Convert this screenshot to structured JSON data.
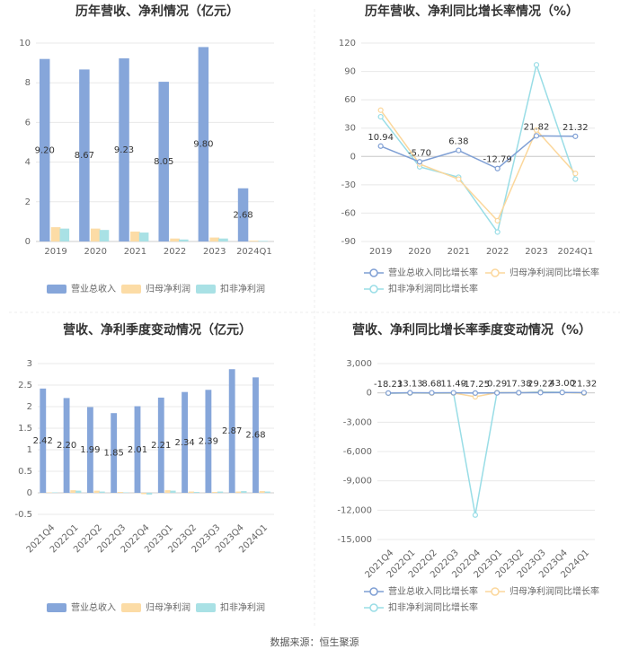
{
  "chart_data": [
    {
      "type": "bar",
      "title": "历年营收、净利情况（亿元）",
      "categories": [
        "2019",
        "2020",
        "2021",
        "2022",
        "2023",
        "2024Q1"
      ],
      "series": [
        {
          "name": "营业总收入",
          "color": "#86a6da",
          "values": [
            9.2,
            8.67,
            9.23,
            8.05,
            9.8,
            2.68
          ],
          "value_labels": [
            "9.20",
            "8.67",
            "9.23",
            "8.05",
            "9.80",
            "2.68"
          ]
        },
        {
          "name": "归母净利润",
          "color": "#fcdca6",
          "values": [
            0.72,
            0.65,
            0.5,
            0.15,
            0.2,
            0.04
          ]
        },
        {
          "name": "扣非净利润",
          "color": "#a9e1e5",
          "values": [
            0.65,
            0.58,
            0.45,
            0.1,
            0.15,
            0.03
          ]
        }
      ],
      "ylim": [
        0,
        10
      ],
      "yticks": [
        0,
        2,
        4,
        6,
        8,
        10
      ],
      "grid": true
    },
    {
      "type": "line",
      "title": "历年营收、净利同比增长率情况（%）",
      "categories": [
        "2019",
        "2020",
        "2021",
        "2022",
        "2023",
        "2024Q1"
      ],
      "series": [
        {
          "name": "营业总收入同比增长率",
          "color": "#7f9fd4",
          "values": [
            10.94,
            -5.7,
            6.38,
            -12.79,
            21.82,
            21.32
          ],
          "value_labels": [
            "10.94",
            "-5.70",
            "6.38",
            "-12.79",
            "21.82",
            "21.32"
          ]
        },
        {
          "name": "归母净利润同比增长率",
          "color": "#fbd79c",
          "values": [
            49,
            -8,
            -24,
            -68,
            28,
            -18
          ]
        },
        {
          "name": "扣非净利润同比增长率",
          "color": "#99dde6",
          "values": [
            42,
            -11,
            -22,
            -80,
            97,
            -24
          ]
        }
      ],
      "ylim": [
        -90,
        120
      ],
      "yticks": [
        -90,
        -60,
        -30,
        0,
        30,
        60,
        90,
        120
      ],
      "grid": true
    },
    {
      "type": "bar",
      "title": "营收、净利季度变动情况（亿元）",
      "categories": [
        "2021Q4",
        "2022Q1",
        "2022Q2",
        "2022Q3",
        "2022Q4",
        "2023Q1",
        "2023Q2",
        "2023Q3",
        "2023Q4",
        "2024Q1"
      ],
      "series": [
        {
          "name": "营业总收入",
          "color": "#86a6da",
          "values": [
            2.42,
            2.2,
            1.99,
            1.85,
            2.01,
            2.21,
            2.34,
            2.39,
            2.87,
            2.68
          ],
          "value_labels": [
            "2.42",
            "2.20",
            "1.99",
            "1.85",
            "2.01",
            "2.21",
            "2.34",
            "2.39",
            "2.87",
            "2.68"
          ]
        },
        {
          "name": "归母净利润",
          "color": "#fcdca6",
          "values": [
            0.01,
            0.06,
            0.05,
            0.02,
            -0.03,
            0.06,
            0.03,
            0.02,
            0.03,
            0.04
          ]
        },
        {
          "name": "扣非净利润",
          "color": "#a9e1e5",
          "values": [
            0.01,
            0.05,
            0.03,
            0.01,
            -0.04,
            0.05,
            0.02,
            0.03,
            0.04,
            0.03
          ]
        }
      ],
      "ylim": [
        -0.5,
        3
      ],
      "yticks": [
        -0.5,
        0,
        0.5,
        1,
        1.5,
        2,
        2.5,
        3
      ],
      "grid": true
    },
    {
      "type": "line",
      "title": "营收、净利同比增长率季度变动情况（%）",
      "categories": [
        "2021Q4",
        "2022Q1",
        "2022Q2",
        "2022Q3",
        "2022Q4",
        "2023Q1",
        "2023Q2",
        "2023Q3",
        "2023Q4",
        "2024Q1"
      ],
      "series": [
        {
          "name": "营业总收入同比增长率",
          "color": "#7f9fd4",
          "values": [
            -18.23,
            13.13,
            8.68,
            11.49,
            -17.25,
            0.29,
            17.38,
            29.22,
            43.0,
            21.32
          ],
          "value_labels": [
            "-18.23",
            "13.13",
            "8.68",
            "11.49",
            "-17.25",
            "0.29",
            "17.38",
            "29.22",
            "43.00",
            "21.32"
          ]
        },
        {
          "name": "归母净利润同比增长率",
          "color": "#fbd79c",
          "values": [
            -30,
            -10,
            -20,
            -15,
            -400,
            30,
            10,
            60,
            40,
            -20
          ]
        },
        {
          "name": "扣非净利润同比增长率",
          "color": "#99dde6",
          "values": [
            -40,
            -20,
            -25,
            -20,
            -12500,
            40,
            15,
            110,
            60,
            -25
          ]
        }
      ],
      "ylim": [
        -15000,
        3000
      ],
      "yticks": [
        {
          "value": -15000,
          "label": "-15,000"
        },
        {
          "value": -12000,
          "label": "-12,000"
        },
        {
          "value": -9000,
          "label": "-9,000"
        },
        {
          "value": -6000,
          "label": "-6,000"
        },
        {
          "value": -3000,
          "label": "-3,000"
        },
        0,
        {
          "value": 3000,
          "label": "3,000"
        }
      ],
      "grid": true
    }
  ],
  "footer": {
    "source": "数据来源：恒生聚源"
  }
}
